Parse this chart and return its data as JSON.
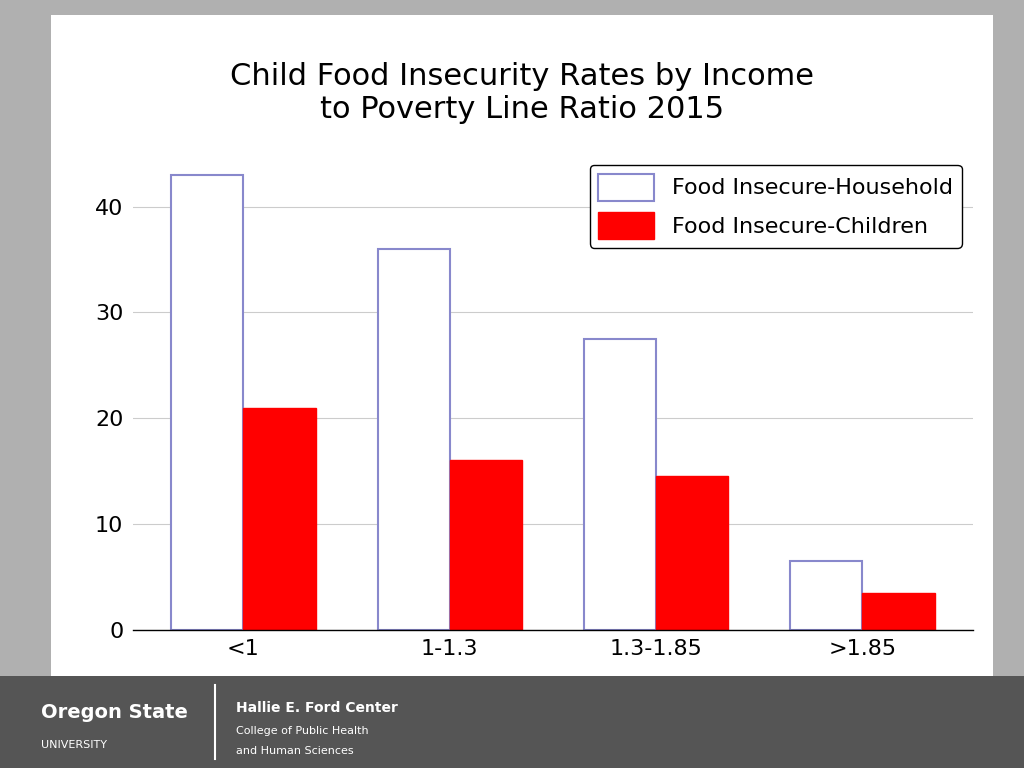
{
  "title": "Child Food Insecurity Rates by Income\nto Poverty Line Ratio 2015",
  "categories": [
    "<1",
    "1-1.3",
    "1.3-1.85",
    ">1.85"
  ],
  "household_values": [
    43,
    36,
    27.5,
    6.5
  ],
  "children_values": [
    21,
    16,
    14.5,
    3.5
  ],
  "household_color": "#ffffff",
  "household_edge_color": "#8888cc",
  "children_color": "#ff0000",
  "children_edge_color": "#ff0000",
  "legend_household": "Food Insecure-Household",
  "legend_children": "Food Insecure-Children",
  "ylim": [
    0,
    45
  ],
  "yticks": [
    0,
    10,
    20,
    30,
    40
  ],
  "title_fontsize": 22,
  "tick_fontsize": 16,
  "legend_fontsize": 16,
  "bar_width": 0.35,
  "outer_bg": "#b0b0b0",
  "grid_color": "#cccccc",
  "axis_bg": "#ffffff",
  "footer_bg": "#555555",
  "footer_osu_main": "Oregon State",
  "footer_osu_sub": "UNIVERSITY",
  "footer_center_main": "Hallie E. Ford Center",
  "footer_center_sub1": "College of Public Health",
  "footer_center_sub2": "and Human Sciences"
}
